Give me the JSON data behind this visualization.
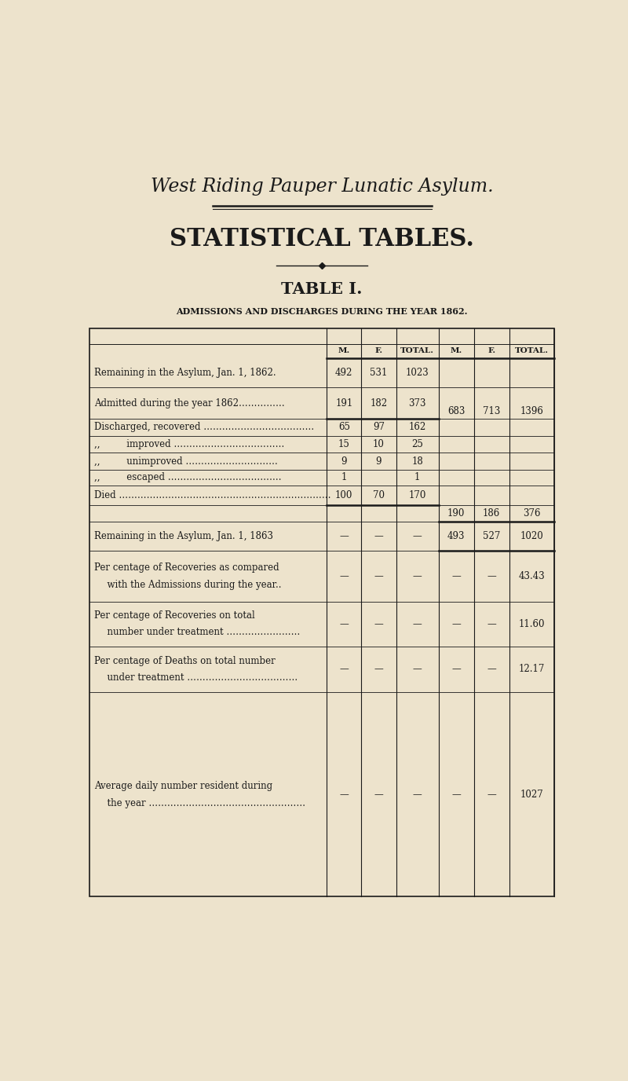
{
  "bg_color": "#ede3cc",
  "text_color": "#1a1a1a",
  "header_title": "West Riding Pauper Lunatic Asylum.",
  "section_title": "STATISTICAL TABLES.",
  "table_title": "TABLE I.",
  "table_subtitle": "ADMISSIONS AND DISCHARGES DURING THE YEAR 1862.",
  "col_headers": [
    "M.",
    "F.",
    "TOTAL.",
    "M.",
    "F.",
    "TOTAL."
  ],
  "row0_label": "Remaining in the Asylum, Jan. 1, 1862.",
  "row0_left": [
    "492",
    "531",
    "1023"
  ],
  "row1_label": "Admitted during the year 1862……………",
  "row1_left": [
    "191",
    "182",
    "373"
  ],
  "row1_right": [
    "683",
    "713",
    "1396"
  ],
  "row2_label": "Discharged, recovered ………………………………",
  "row2_left": [
    "65",
    "97",
    "162"
  ],
  "row3_label": ",,         improved ………………………………",
  "row3_left": [
    "15",
    "10",
    "25"
  ],
  "row4_label": ",,         unimproved …………………………",
  "row4_left": [
    "9",
    "9",
    "18"
  ],
  "row5_label": ",,         escaped ……………………………….",
  "row5_left": [
    "1",
    "",
    "1"
  ],
  "row6_label": "Died ……………………………………………………………",
  "row6_left": [
    "100",
    "70",
    "170"
  ],
  "row6_right": [
    "190",
    "186",
    "376"
  ],
  "row7_label": "Remaining in the Asylum, Jan. 1, 1863",
  "row7_left": [
    "—",
    "—",
    "—"
  ],
  "row7_right": [
    "493",
    "527",
    "1020"
  ],
  "row8_label1": "Per centage of Recoveries as compared",
  "row8_label2": "  with the Admissions during the year..",
  "row8_left": [
    "—",
    "—",
    "—"
  ],
  "row8_right": [
    "—",
    "—",
    "43.43"
  ],
  "row9_label1": "Per centage of Recoveries on total",
  "row9_label2": "  number under treatment ……………………",
  "row9_left": [
    "—",
    "—",
    "—"
  ],
  "row9_right": [
    "—",
    "—",
    "11.60"
  ],
  "row10_label1": "Per centage of Deaths on total number",
  "row10_label2": "  under treatment ………………………………",
  "row10_left": [
    "—",
    "—",
    "—"
  ],
  "row10_right": [
    "—",
    "—",
    "12.17"
  ],
  "row11_label1": "Average daily number resident during",
  "row11_label2": "  the year ……………………………………………",
  "row11_left": [
    "—",
    "—",
    "—"
  ],
  "row11_right": [
    "—",
    "—",
    "1027"
  ]
}
